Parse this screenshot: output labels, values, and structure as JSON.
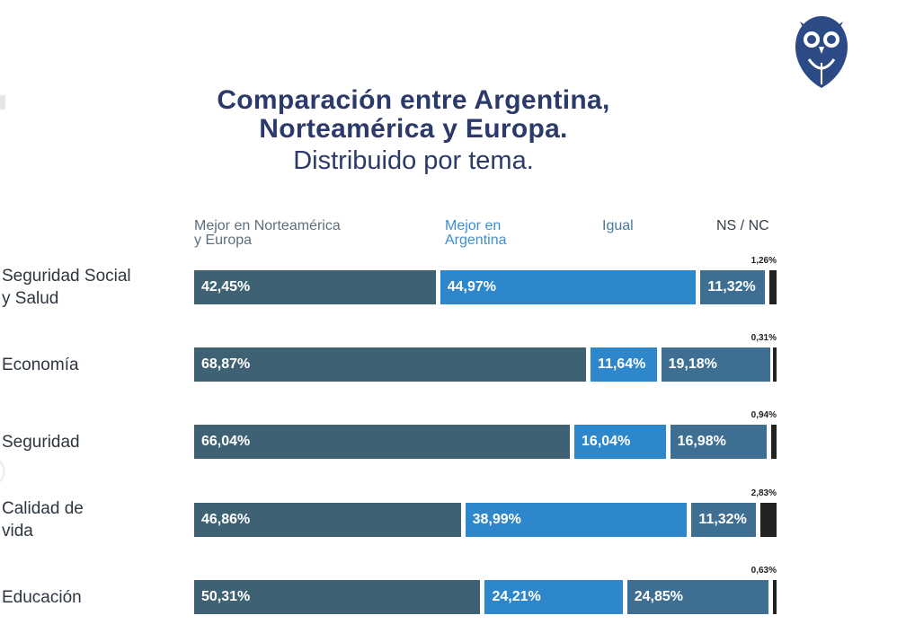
{
  "title": {
    "line1": "Comparación entre Argentina,",
    "line2": "Norteamérica y Europa.",
    "subtitle": "Distribuido por tema."
  },
  "colors": {
    "dark": "#3f6174",
    "blue": "#2f87cb",
    "teal": "#3e6f92",
    "black": "#222222",
    "legend_dark": "#5e6f7c",
    "legend_blue": "#3c8fd4",
    "legend_teal": "#4c7a98",
    "legend_nsnc": "#33404c",
    "logo": "#2b4a86"
  },
  "chart_data": {
    "type": "bar",
    "orientation": "horizontal",
    "stacked": true,
    "title": "Comparación entre Argentina, Norteamérica y Europa. Distribuido por tema.",
    "legend_position": "top",
    "categories": [
      "Seguridad Social y Salud",
      "Economía",
      "Seguridad",
      "Calidad de vida",
      "Educación"
    ],
    "category_lines": [
      [
        "Seguridad Social",
        "y Salud"
      ],
      [
        "Economía"
      ],
      [
        "Seguridad"
      ],
      [
        "Calidad de",
        "vida"
      ],
      [
        "Educación"
      ]
    ],
    "series": [
      {
        "name": "Mejor en Norteamérica y Europa",
        "legend_lines": [
          "Mejor en Norteamérica",
          "y Europa"
        ],
        "color_key": "dark",
        "legend_color_key": "legend_dark",
        "values": [
          42.45,
          68.87,
          66.04,
          46.86,
          50.31
        ],
        "labels": [
          "42,45%",
          "68,87%",
          "66,04%",
          "46,86%",
          "50,31%"
        ]
      },
      {
        "name": "Mejor en Argentina",
        "legend_lines": [
          "Mejor en",
          "Argentina"
        ],
        "color_key": "blue",
        "legend_color_key": "legend_blue",
        "values": [
          44.97,
          11.64,
          16.04,
          38.99,
          24.21
        ],
        "labels": [
          "44,97%",
          "11,64%",
          "16,04%",
          "38,99%",
          "24,21%"
        ]
      },
      {
        "name": "Igual",
        "legend_lines": [
          "Igual"
        ],
        "color_key": "teal",
        "legend_color_key": "legend_teal",
        "values": [
          11.32,
          19.18,
          16.98,
          11.32,
          24.85
        ],
        "labels": [
          "11,32%",
          "19,18%",
          "16,98%",
          "11,32%",
          "24,85%"
        ]
      },
      {
        "name": "NS / NC",
        "legend_lines": [
          "NS / NC"
        ],
        "color_key": "black",
        "legend_color_key": "legend_nsnc",
        "values": [
          1.26,
          0.31,
          0.94,
          2.83,
          0.63
        ],
        "labels": [
          "1,26%",
          "0,31%",
          "0,94%",
          "2,83%",
          "0,63%"
        ]
      }
    ]
  }
}
